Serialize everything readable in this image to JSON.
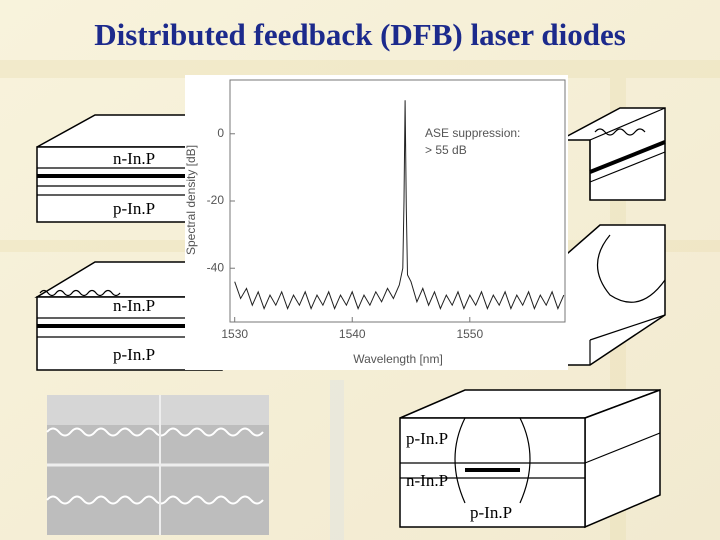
{
  "title": "Distributed feedback (DFB) laser diodes",
  "diagrams": [
    {
      "labels": [
        "n-In.P",
        "p-In.P"
      ]
    },
    {
      "labels": [
        "n-In.P",
        "p-In.P"
      ]
    },
    {
      "labels": [
        "p-In.P",
        "n-In.P",
        "p-In.P"
      ]
    }
  ],
  "chart_data": {
    "type": "line",
    "xlabel": "Wavelength [nm]",
    "ylabel": "Spectral density [dB]",
    "annotation": [
      "ASE suppression:",
      "> 55 dB"
    ],
    "color": "#222222",
    "xlim": [
      1529.6,
      1558.1
    ],
    "ylim": [
      -56,
      16
    ],
    "xticks": [
      1530,
      1540,
      1550
    ],
    "yticks": [
      0,
      -20,
      -40
    ],
    "x": [
      1530,
      1530.5,
      1531,
      1531.5,
      1532,
      1532.5,
      1533,
      1533.5,
      1534,
      1534.5,
      1535,
      1535.5,
      1536,
      1536.5,
      1537,
      1537.5,
      1538,
      1538.5,
      1539,
      1539.5,
      1540,
      1540.5,
      1541,
      1541.5,
      1542,
      1542.5,
      1543,
      1543.5,
      1544,
      1544.3,
      1544.4,
      1544.5,
      1544.6,
      1544.7,
      1545,
      1545.5,
      1546,
      1546.5,
      1547,
      1547.5,
      1548,
      1548.5,
      1549,
      1549.5,
      1550,
      1550.5,
      1551,
      1551.5,
      1552,
      1552.5,
      1553,
      1553.5,
      1554,
      1554.5,
      1555,
      1555.5,
      1556,
      1556.5,
      1557,
      1557.5,
      1558
    ],
    "values": [
      -44,
      -49,
      -46,
      -51,
      -47,
      -52,
      -48,
      -51,
      -47,
      -52,
      -48,
      -51,
      -47,
      -52,
      -48,
      -51,
      -47,
      -52,
      -48,
      -51,
      -47,
      -52,
      -48,
      -51,
      -47,
      -50,
      -46,
      -49,
      -45,
      -40,
      -20,
      10,
      -22,
      -42,
      -44,
      -50,
      -46,
      -51,
      -47,
      -52,
      -48,
      -51,
      -47,
      -52,
      -48,
      -51,
      -47,
      -52,
      -48,
      -51,
      -47,
      -52,
      -48,
      -51,
      -47,
      -52,
      -48,
      -51,
      -47,
      -52,
      -48
    ]
  }
}
